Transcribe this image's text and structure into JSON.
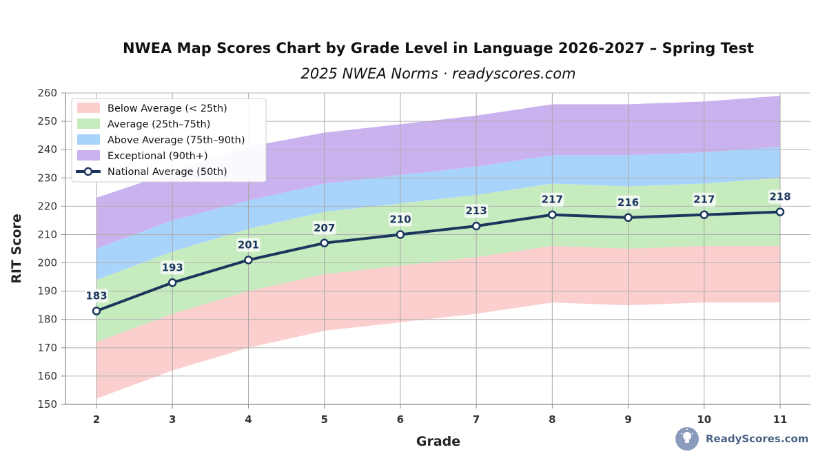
{
  "chart_data": {
    "type": "area",
    "title": "NWEA Map Scores Chart by Grade Level in Language 2026-2027 – Spring Test",
    "subtitle": "2025 NWEA Norms · readyscores.com",
    "xlabel": "Grade",
    "ylabel": "RIT Score",
    "categories": [
      "2",
      "3",
      "4",
      "5",
      "6",
      "7",
      "8",
      "9",
      "10",
      "11"
    ],
    "ylim": [
      150,
      260
    ],
    "yticks": [
      150,
      160,
      170,
      180,
      190,
      200,
      210,
      220,
      230,
      240,
      250,
      260
    ],
    "grid": true,
    "legend_position": "top-left",
    "bands": [
      {
        "name": "Below Average (< 25th)",
        "color": "#fccfcf",
        "lower": [
          152,
          162,
          170,
          176,
          179,
          182,
          186,
          185,
          186,
          186
        ],
        "upper": [
          172,
          182,
          190,
          196,
          199,
          202,
          206,
          205,
          206,
          206
        ]
      },
      {
        "name": "Average (25th–75th)",
        "color": "#c6ebbe",
        "lower": [
          172,
          182,
          190,
          196,
          199,
          202,
          206,
          205,
          206,
          206
        ],
        "upper": [
          194,
          204,
          212,
          218,
          221,
          224,
          228,
          227,
          228,
          230
        ]
      },
      {
        "name": "Above Average (75th–90th)",
        "color": "#a8d4fc",
        "lower": [
          194,
          204,
          212,
          218,
          221,
          224,
          228,
          227,
          228,
          230
        ],
        "upper": [
          205,
          215,
          222,
          228,
          231,
          234,
          238,
          238,
          239,
          241
        ]
      },
      {
        "name": "Exceptional (90th+)",
        "color": "#cab2ee",
        "lower": [
          205,
          215,
          222,
          228,
          231,
          234,
          238,
          238,
          239,
          241
        ],
        "upper": [
          223,
          232,
          241,
          246,
          249,
          252,
          256,
          256,
          257,
          259
        ]
      }
    ],
    "series": [
      {
        "name": "National Average (50th)",
        "color": "#1b365d",
        "values": [
          183,
          193,
          201,
          207,
          210,
          213,
          217,
          216,
          217,
          218
        ]
      }
    ]
  },
  "watermark": {
    "text": "ReadyScores.com",
    "icon": "lightbulb-icon"
  }
}
